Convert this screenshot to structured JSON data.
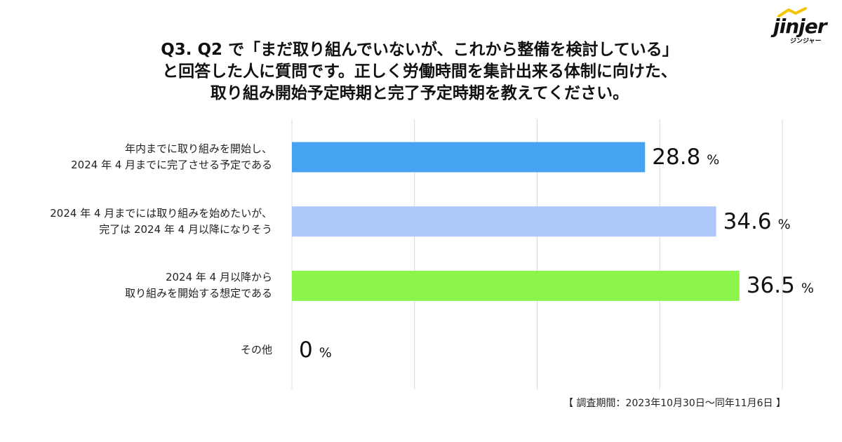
{
  "logo": {
    "text": "jinjer",
    "subtext": "ジンジャー",
    "roof_color": "#f6c500"
  },
  "chart_data": {
    "type": "bar",
    "orientation": "horizontal",
    "title": [
      "Q3. Q2 で「まだ取り組んでいないが、これから整備を検討している」",
      "と回答した人に質問です。正しく労働時間を集計出来る体制に向けた、",
      "取り組み開始予定時期と完了予定時期を教えてください。"
    ],
    "categories": [
      [
        "年内までに取り組みを開始し、",
        "2024 年 4 月までに完了させる予定である"
      ],
      [
        "2024 年 4 月までには取り組みを始めたいが、",
        "完了は 2024 年 4 月以降になりそう"
      ],
      [
        "2024 年 4 月以降から",
        "取り組みを開始する想定である"
      ],
      [
        "その他"
      ]
    ],
    "values": [
      28.8,
      34.6,
      36.5,
      0
    ],
    "unit": "%",
    "colors": [
      "#45a3f2",
      "#aec8fb",
      "#8cf54b"
    ],
    "xlim": [
      0,
      40
    ],
    "xticks": [
      0,
      10,
      20,
      30,
      40
    ],
    "grid": true
  },
  "footnote": "【 調査期間：2023年10月30日〜同年11月6日 】"
}
